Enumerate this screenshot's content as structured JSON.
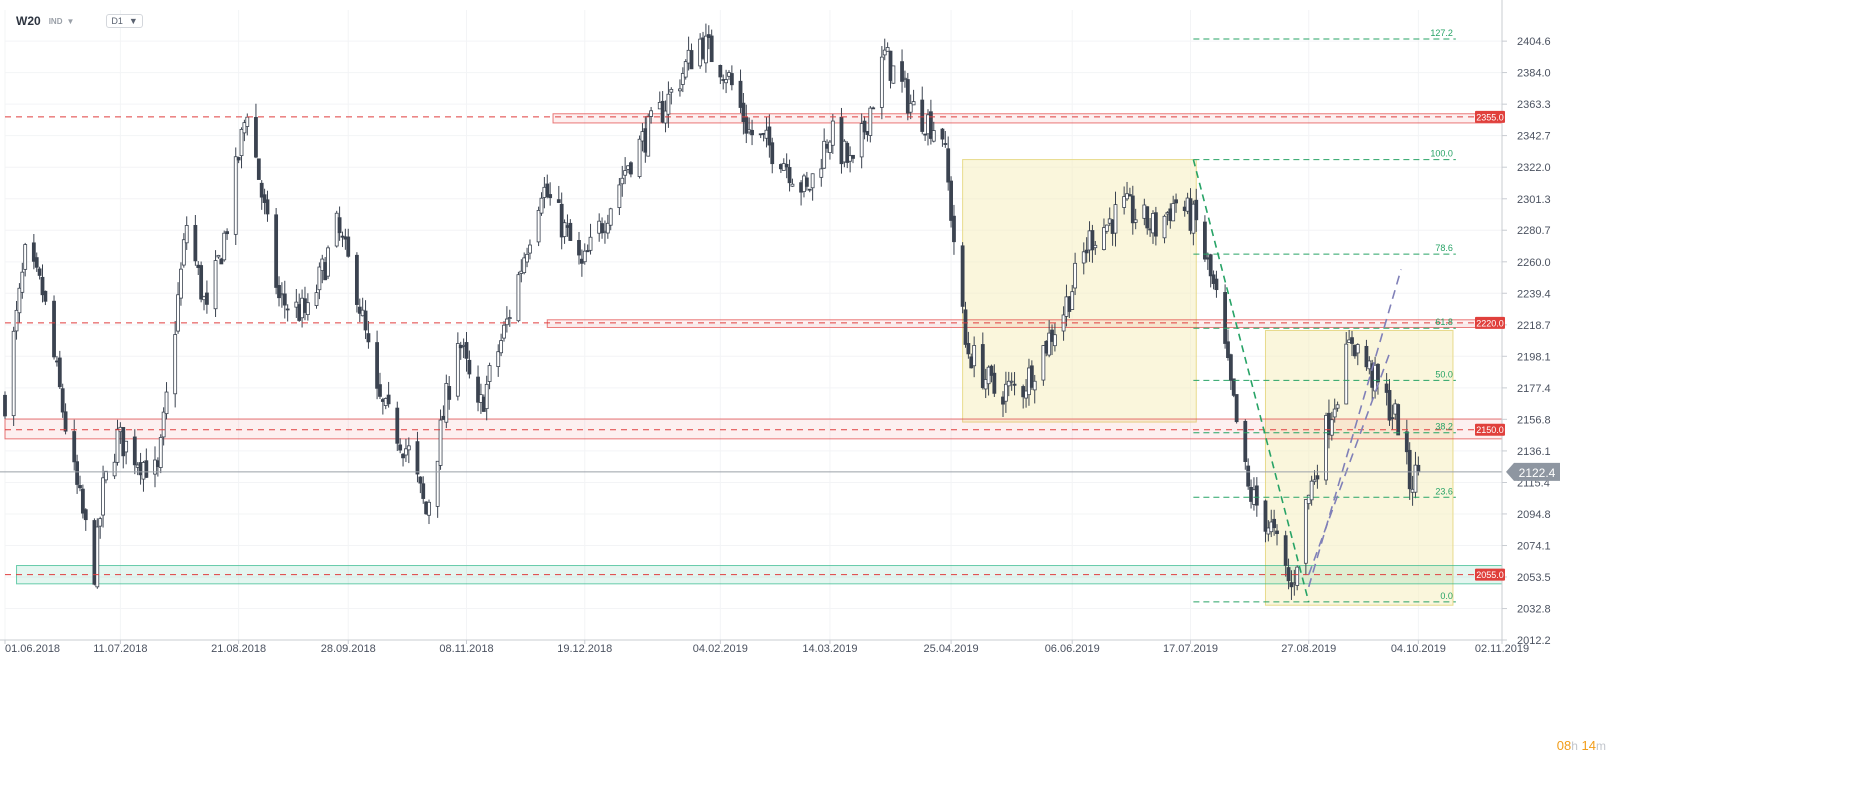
{
  "header": {
    "symbol": "W20",
    "exchange": "IND",
    "timeframe": "D1"
  },
  "countdown": {
    "hours": "08",
    "h_unit": "h",
    "minutes": "14",
    "m_unit": "m"
  },
  "colors": {
    "up_candle": "#ffffff",
    "down_candle": "#3b4350",
    "candle_outline": "#3b4350",
    "resistance": "#e03e3e",
    "support_zone": "#2eb88a",
    "fib": "#27a366",
    "trendline": "#8080b8",
    "price_badge": "#8e96a1"
  },
  "chart_data": {
    "type": "candlestick",
    "title": "",
    "xlabel": "",
    "ylabel": "",
    "ylim": [
      2012.2,
      2425
    ],
    "yticks": [
      2012.2,
      2032.8,
      2053.5,
      2074.1,
      2094.8,
      2115.4,
      2136.1,
      2156.8,
      2177.4,
      2198.1,
      2218.7,
      2239.4,
      2260.0,
      2280.7,
      2301.3,
      2322.0,
      2342.7,
      2363.3,
      2384.0,
      2404.6
    ],
    "x_start": "2018-06-01",
    "x_end": "2019-11-02",
    "x_ticks": [
      {
        "date": "2018-06-01",
        "label": "01.06.2018"
      },
      {
        "date": "2018-07-11",
        "label": "11.07.2018"
      },
      {
        "date": "2018-08-21",
        "label": "21.08.2018"
      },
      {
        "date": "2018-09-28",
        "label": "28.09.2018"
      },
      {
        "date": "2018-11-08",
        "label": "08.11.2018"
      },
      {
        "date": "2018-12-19",
        "label": "19.12.2018"
      },
      {
        "date": "2019-02-04",
        "label": "04.02.2019"
      },
      {
        "date": "2019-03-14",
        "label": "14.03.2019"
      },
      {
        "date": "2019-04-25",
        "label": "25.04.2019"
      },
      {
        "date": "2019-06-06",
        "label": "06.06.2019"
      },
      {
        "date": "2019-07-17",
        "label": "17.07.2019"
      },
      {
        "date": "2019-08-27",
        "label": "27.08.2019"
      },
      {
        "date": "2019-10-04",
        "label": "04.10.2019"
      },
      {
        "date": "2019-11-02",
        "label": "02.11.2019"
      }
    ],
    "anchors": [
      [
        "2018-06-01",
        2170
      ],
      [
        "2018-06-08",
        2262
      ],
      [
        "2018-06-14",
        2240
      ],
      [
        "2018-06-25",
        2120
      ],
      [
        "2018-07-02",
        2058
      ],
      [
        "2018-07-05",
        2110
      ],
      [
        "2018-07-10",
        2145
      ],
      [
        "2018-07-17",
        2132
      ],
      [
        "2018-07-24",
        2120
      ],
      [
        "2018-08-03",
        2285
      ],
      [
        "2018-08-10",
        2225
      ],
      [
        "2018-08-17",
        2285
      ],
      [
        "2018-08-24",
        2362
      ],
      [
        "2018-09-04",
        2235
      ],
      [
        "2018-09-14",
        2225
      ],
      [
        "2018-09-24",
        2282
      ],
      [
        "2018-10-01",
        2242
      ],
      [
        "2018-10-08",
        2170
      ],
      [
        "2018-10-19",
        2135
      ],
      [
        "2018-10-25",
        2095
      ],
      [
        "2018-11-05",
        2212
      ],
      [
        "2018-11-12",
        2160
      ],
      [
        "2018-11-22",
        2220
      ],
      [
        "2018-12-04",
        2310
      ],
      [
        "2018-12-11",
        2285
      ],
      [
        "2018-12-18",
        2255
      ],
      [
        "2019-01-03",
        2325
      ],
      [
        "2019-01-15",
        2360
      ],
      [
        "2019-01-28",
        2405
      ],
      [
        "2019-02-06",
        2385
      ],
      [
        "2019-02-14",
        2345
      ],
      [
        "2019-02-25",
        2330
      ],
      [
        "2019-03-06",
        2305
      ],
      [
        "2019-03-14",
        2345
      ],
      [
        "2019-03-22",
        2320
      ],
      [
        "2019-04-02",
        2395
      ],
      [
        "2019-04-12",
        2360
      ],
      [
        "2019-04-22",
        2345
      ],
      [
        "2019-04-30",
        2205
      ],
      [
        "2019-05-10",
        2175
      ],
      [
        "2019-05-20",
        2178
      ],
      [
        "2019-06-03",
        2228
      ],
      [
        "2019-06-12",
        2275
      ],
      [
        "2019-06-24",
        2295
      ],
      [
        "2019-07-05",
        2282
      ],
      [
        "2019-07-12",
        2300
      ],
      [
        "2019-07-19",
        2285
      ],
      [
        "2019-07-26",
        2235
      ],
      [
        "2019-08-01",
        2165
      ],
      [
        "2019-08-06",
        2110
      ],
      [
        "2019-08-14",
        2085
      ],
      [
        "2019-08-21",
        2045
      ],
      [
        "2019-08-26",
        2100
      ],
      [
        "2019-09-02",
        2150
      ],
      [
        "2019-09-11",
        2210
      ],
      [
        "2019-09-18",
        2185
      ],
      [
        "2019-09-27",
        2155
      ],
      [
        "2019-10-01",
        2115
      ],
      [
        "2019-10-04",
        2122.4
      ]
    ],
    "resistance_levels": [
      {
        "value": 2355.0,
        "label": "2355.0",
        "zone": [
          2351,
          2357
        ],
        "zone_from": "2018-12-08"
      },
      {
        "value": 2220.0,
        "label": "2220.0",
        "zone": [
          2217,
          2222
        ],
        "zone_from": "2018-12-06"
      },
      {
        "value": 2150.0,
        "label": "2150.0",
        "zone": [
          2144,
          2157
        ],
        "zone_from": "2018-06-01"
      },
      {
        "value": 2055.0,
        "label": "2055.0",
        "zone": [
          2049,
          2061
        ],
        "zone_from": "2018-06-05",
        "support": true
      }
    ],
    "current_price": {
      "value": 2122.4,
      "label": "2122.4"
    },
    "fibonacci": {
      "from_date": "2019-07-18",
      "to_date": "2019-10-17",
      "levels": [
        {
          "ratio": "127.2",
          "value": 2406.0
        },
        {
          "ratio": "100.0",
          "value": 2327.0
        },
        {
          "ratio": "78.6",
          "value": 2265.0
        },
        {
          "ratio": "61.8",
          "value": 2216.5
        },
        {
          "ratio": "50.0",
          "value": 2182.3
        },
        {
          "ratio": "38.2",
          "value": 2148.0
        },
        {
          "ratio": "23.6",
          "value": 2105.7
        },
        {
          "ratio": "0.0",
          "value": 2037.2
        }
      ]
    },
    "rect_zones": [
      {
        "from": "2019-04-29",
        "to": "2019-07-19",
        "top": 2327,
        "bottom": 2155
      },
      {
        "from": "2019-08-12",
        "to": "2019-10-16",
        "top": 2215,
        "bottom": 2035
      }
    ],
    "trendlines": [
      {
        "from": [
          "2019-07-18",
          2327
        ],
        "to": [
          "2019-08-27",
          2037
        ],
        "style": "fib"
      },
      {
        "from": [
          "2019-08-27",
          2047
        ],
        "to": [
          "2019-09-28",
          2255
        ],
        "style": "channel"
      },
      {
        "from": [
          "2019-08-27",
          2055
        ],
        "to": [
          "2019-09-24",
          2200
        ],
        "style": "channel"
      }
    ]
  }
}
